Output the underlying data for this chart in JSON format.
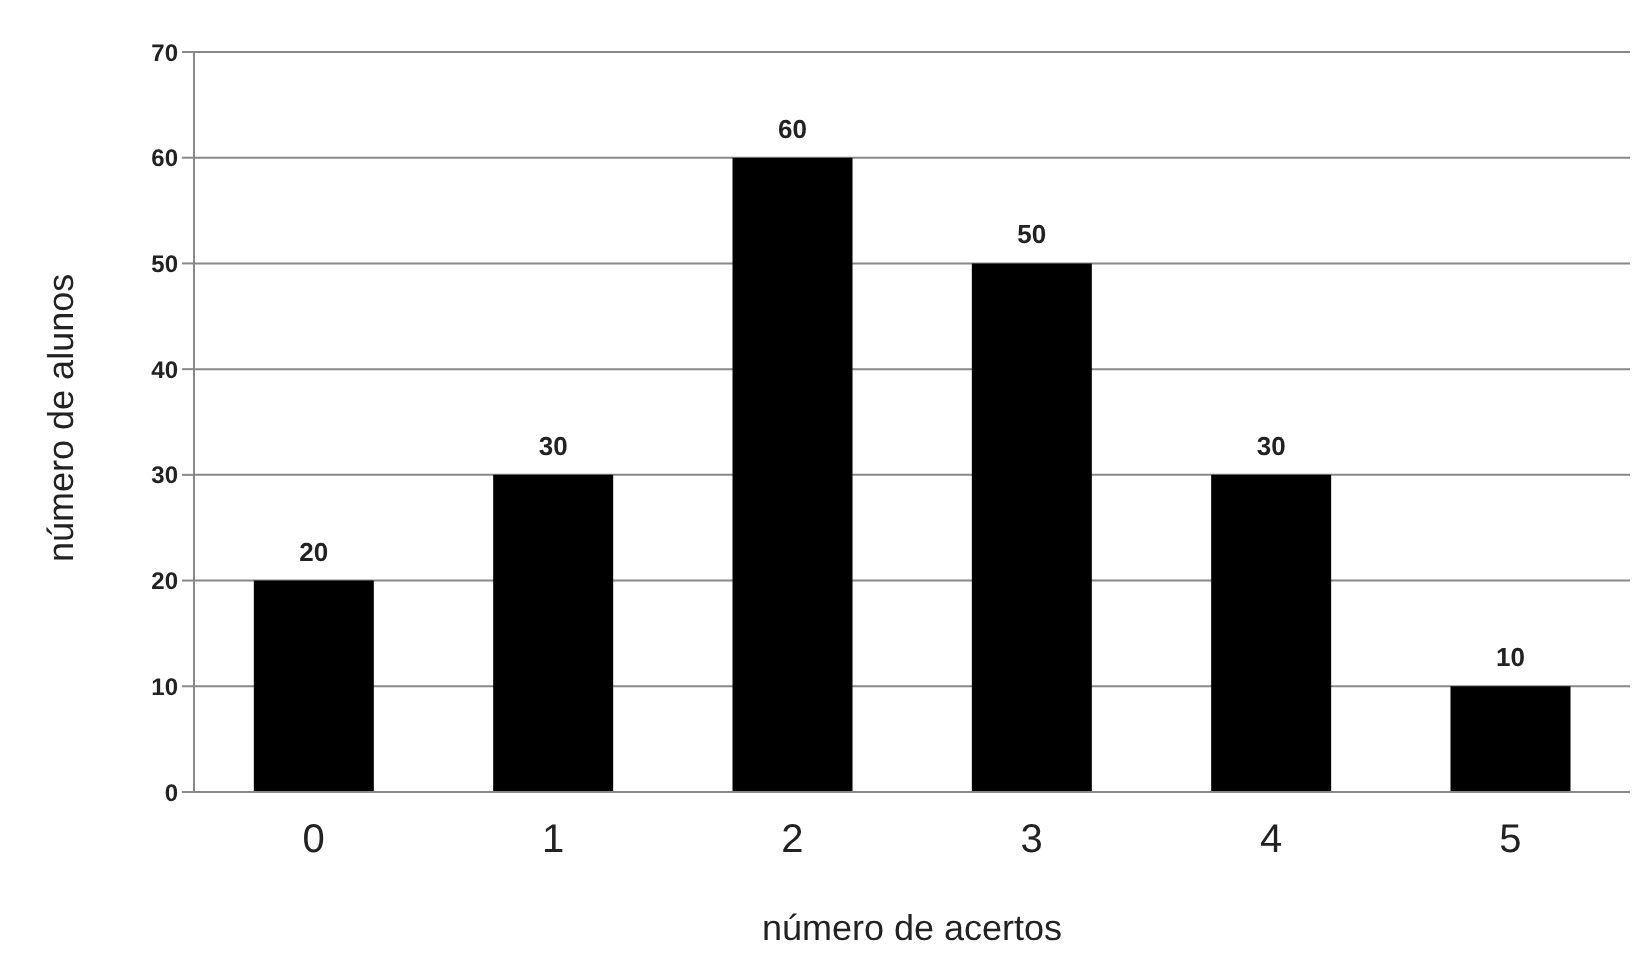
{
  "chart_data": {
    "type": "bar",
    "xlabel": "número de acertos",
    "ylabel": "número de alunos",
    "categories": [
      "0",
      "1",
      "2",
      "3",
      "4",
      "5"
    ],
    "values": [
      20,
      30,
      60,
      50,
      30,
      10
    ],
    "color": "#000000",
    "ylim": [
      0,
      70
    ],
    "yticks": [
      0,
      10,
      20,
      30,
      40,
      50,
      60,
      70
    ],
    "grid": "y",
    "data_labels": true
  }
}
